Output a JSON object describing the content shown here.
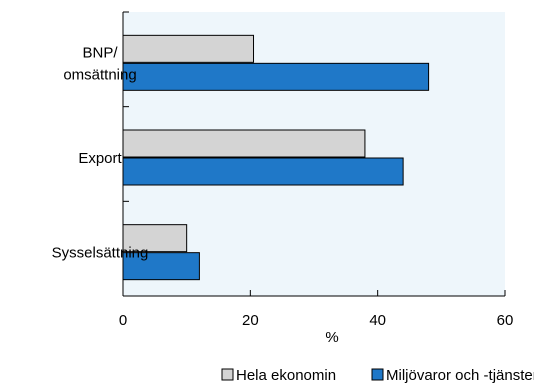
{
  "chart_data": {
    "type": "bar",
    "orientation": "horizontal",
    "categories": [
      [
        "BNP/",
        "omsättning"
      ],
      [
        "Export"
      ],
      [
        "Sysselsättning"
      ]
    ],
    "series": [
      {
        "name": "Hela ekonomin",
        "color": "#d4d4d4",
        "values": [
          20.5,
          38.0,
          10.0
        ]
      },
      {
        "name": "Miljövaror och -tjänster",
        "color": "#1f78c8",
        "values": [
          48.0,
          44.0,
          12.0
        ]
      }
    ],
    "xticks": [
      "0",
      "20",
      "40",
      "60"
    ],
    "xlim": [
      0,
      60
    ],
    "xlabel": "%",
    "plot_background": "#eef6fb",
    "legend_position": "bottom-right"
  }
}
